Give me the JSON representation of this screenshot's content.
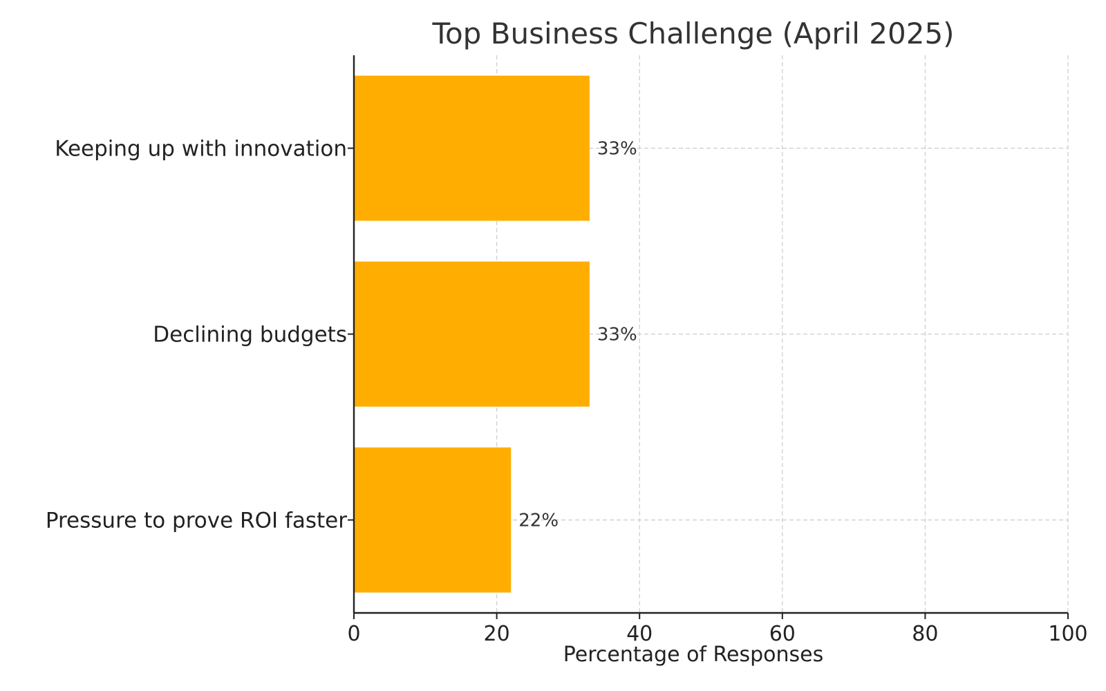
{
  "chart_data": {
    "type": "bar",
    "orientation": "horizontal",
    "title": "Top Business Challenge (April 2025)",
    "xlabel": "Percentage of Responses",
    "ylabel": "",
    "xlim": [
      0,
      100
    ],
    "xticks": [
      0,
      20,
      40,
      60,
      80,
      100
    ],
    "categories": [
      "Keeping up with innovation",
      "Declining budgets",
      "Pressure to prove ROI faster"
    ],
    "values": [
      33,
      33,
      22
    ],
    "value_labels": [
      "33%",
      "33%",
      "22%"
    ],
    "bar_color": "#ffad00",
    "grid": true,
    "legend": "none"
  }
}
